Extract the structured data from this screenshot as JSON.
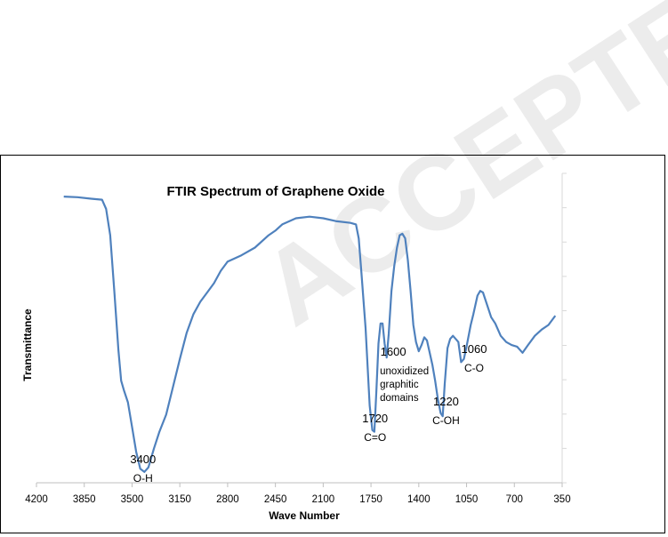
{
  "watermark": {
    "text": "ACCEPTED MANUSCRIPT",
    "color": "#d9d9d9"
  },
  "chart_data": {
    "type": "line",
    "title": "FTIR Spectrum of Graphene Oxide",
    "xlabel": "Wave Number",
    "ylabel": "Transmittance",
    "x_reversed": true,
    "xlim": [
      4200,
      350
    ],
    "ylim": [
      0,
      100
    ],
    "x_ticks": [
      4200,
      3850,
      3500,
      3150,
      2800,
      2450,
      2100,
      1750,
      1400,
      1050,
      700,
      350
    ],
    "y_ticks": [
      0,
      11.1,
      22.2,
      33.3,
      44.4,
      55.6,
      66.7,
      77.8,
      88.9,
      100
    ],
    "grid": false,
    "line_color": "#4f81bd",
    "series": [
      {
        "values": [
          [
            4000,
            92.5
          ],
          [
            3900,
            92.3
          ],
          [
            3800,
            91.8
          ],
          [
            3720,
            91.5
          ],
          [
            3690,
            88.5
          ],
          [
            3660,
            80
          ],
          [
            3630,
            62
          ],
          [
            3600,
            43
          ],
          [
            3580,
            33
          ],
          [
            3560,
            30
          ],
          [
            3530,
            26
          ],
          [
            3500,
            18
          ],
          [
            3470,
            10
          ],
          [
            3440,
            4.5
          ],
          [
            3410,
            3.5
          ],
          [
            3380,
            5
          ],
          [
            3340,
            11
          ],
          [
            3300,
            16.5
          ],
          [
            3250,
            22
          ],
          [
            3200,
            31
          ],
          [
            3150,
            40
          ],
          [
            3100,
            48.5
          ],
          [
            3050,
            54.5
          ],
          [
            3000,
            58.5
          ],
          [
            2950,
            61.5
          ],
          [
            2900,
            64.5
          ],
          [
            2850,
            68.5
          ],
          [
            2800,
            71.5
          ],
          [
            2750,
            72.5
          ],
          [
            2700,
            73.5
          ],
          [
            2600,
            76
          ],
          [
            2500,
            80
          ],
          [
            2450,
            81.5
          ],
          [
            2400,
            83.5
          ],
          [
            2300,
            85.5
          ],
          [
            2200,
            86
          ],
          [
            2100,
            85.5
          ],
          [
            2000,
            84.5
          ],
          [
            1900,
            84
          ],
          [
            1860,
            83.5
          ],
          [
            1840,
            79
          ],
          [
            1820,
            68
          ],
          [
            1790,
            50
          ],
          [
            1760,
            25
          ],
          [
            1740,
            17
          ],
          [
            1725,
            16.5
          ],
          [
            1710,
            30
          ],
          [
            1695,
            45
          ],
          [
            1680,
            51.5
          ],
          [
            1665,
            51.5
          ],
          [
            1650,
            45
          ],
          [
            1635,
            40.5
          ],
          [
            1620,
            48
          ],
          [
            1600,
            62
          ],
          [
            1580,
            70
          ],
          [
            1560,
            76
          ],
          [
            1540,
            80
          ],
          [
            1520,
            80.5
          ],
          [
            1500,
            79
          ],
          [
            1480,
            72
          ],
          [
            1460,
            62
          ],
          [
            1440,
            51
          ],
          [
            1420,
            45.5
          ],
          [
            1400,
            42.5
          ],
          [
            1380,
            44.5
          ],
          [
            1360,
            47
          ],
          [
            1340,
            46
          ],
          [
            1320,
            42
          ],
          [
            1300,
            38
          ],
          [
            1280,
            33
          ],
          [
            1260,
            27
          ],
          [
            1240,
            22.5
          ],
          [
            1225,
            21.5
          ],
          [
            1210,
            32
          ],
          [
            1190,
            43.5
          ],
          [
            1170,
            46.5
          ],
          [
            1150,
            47.5
          ],
          [
            1130,
            46.5
          ],
          [
            1110,
            45.5
          ],
          [
            1090,
            39
          ],
          [
            1070,
            40
          ],
          [
            1050,
            44
          ],
          [
            1020,
            51
          ],
          [
            1000,
            54.5
          ],
          [
            970,
            60.5
          ],
          [
            950,
            62
          ],
          [
            930,
            61.5
          ],
          [
            900,
            57.5
          ],
          [
            870,
            53.5
          ],
          [
            840,
            51.5
          ],
          [
            800,
            47.5
          ],
          [
            760,
            45.5
          ],
          [
            720,
            44.5
          ],
          [
            680,
            44
          ],
          [
            640,
            42
          ],
          [
            600,
            44.5
          ],
          [
            550,
            47.5
          ],
          [
            500,
            49.5
          ],
          [
            450,
            51
          ],
          [
            400,
            54
          ]
        ]
      }
    ],
    "annotations": [
      {
        "lines": [
          "3400",
          "O-H"
        ],
        "x": 3400
      },
      {
        "lines": [
          "1720",
          "C=O"
        ],
        "x": 1720
      },
      {
        "lines": [
          "1600",
          "unoxidized",
          "graphitic",
          "domains"
        ],
        "x": 1600
      },
      {
        "lines": [
          "1220",
          "C-OH"
        ],
        "x": 1220
      },
      {
        "lines": [
          "1060",
          "C-O"
        ],
        "x": 1060
      }
    ]
  }
}
